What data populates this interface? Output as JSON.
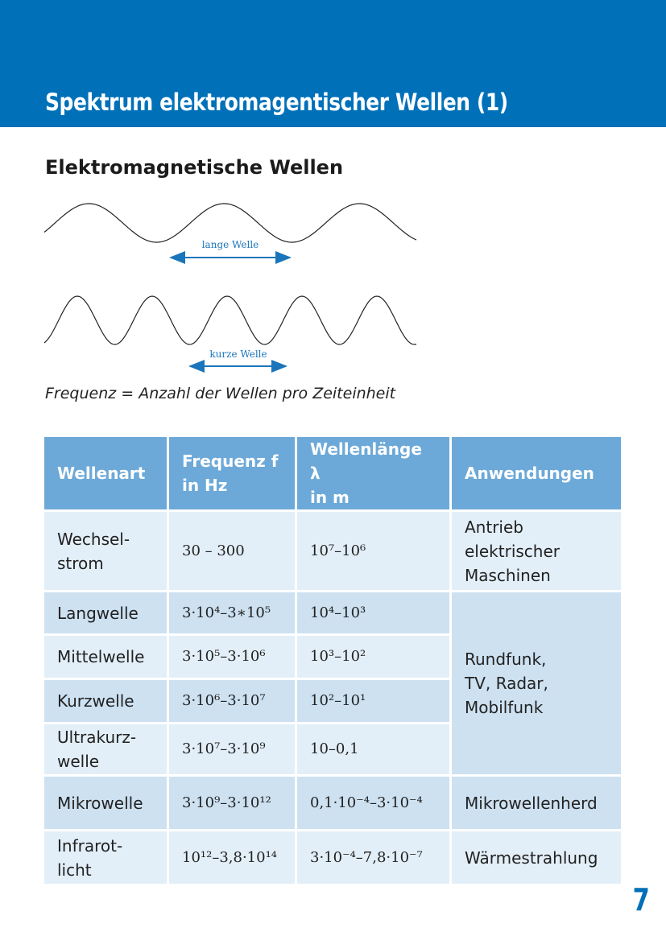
{
  "header": {
    "title": "Spektrum elektromagentischer Wellen (1)"
  },
  "section": {
    "title": "Elektromagnetische Wellen"
  },
  "figure": {
    "long_label": "lange Welle",
    "short_label": "kurze Welle"
  },
  "formula": "Frequenz = Anzahl der Wellen pro Zeiteinheit",
  "table": {
    "header": [
      [
        "Wellenart"
      ],
      [
        "Frequenz f",
        "in Hz"
      ],
      [
        "Wellenlänge λ",
        "in m"
      ],
      [
        "Anwendungen"
      ]
    ],
    "rows": [
      [
        [
          "Wechsel-",
          "strom"
        ],
        [
          "30 – 300"
        ],
        [
          "10⁷–10⁶"
        ],
        [
          "Antrieb",
          "elektrischer",
          "Maschinen"
        ]
      ],
      [
        [
          "Langwelle"
        ],
        [
          "3·10⁴–3∗10⁵"
        ],
        [
          "10⁴–10³"
        ],
        [
          "Rundfunk,",
          "TV, Radar,",
          "Mobilfunk"
        ]
      ],
      [
        [
          "Mittelwelle"
        ],
        [
          "3·10⁵–3·10⁶"
        ],
        [
          "10³–10²"
        ]
      ],
      [
        [
          "Kurzwelle"
        ],
        [
          "3·10⁶–3·10⁷"
        ],
        [
          "10²–10¹"
        ]
      ],
      [
        [
          "Ultrakurz-",
          "welle"
        ],
        [
          "3·10⁷–3·10⁹"
        ],
        [
          "10–0,1"
        ]
      ],
      [
        [
          "Mikrowelle"
        ],
        [
          "3·10⁹–3·10¹²"
        ],
        [
          "0,1·10⁻⁴–3·10⁻⁴"
        ],
        [
          "Mikrowellenherd"
        ]
      ],
      [
        [
          "Infrarot-",
          "licht"
        ],
        [
          "10¹²–3,8·10¹⁴"
        ],
        [
          "3·10⁻⁴–7,8·10⁻⁷"
        ],
        [
          "Wärmestrahlung"
        ]
      ]
    ]
  },
  "page_number": "7"
}
